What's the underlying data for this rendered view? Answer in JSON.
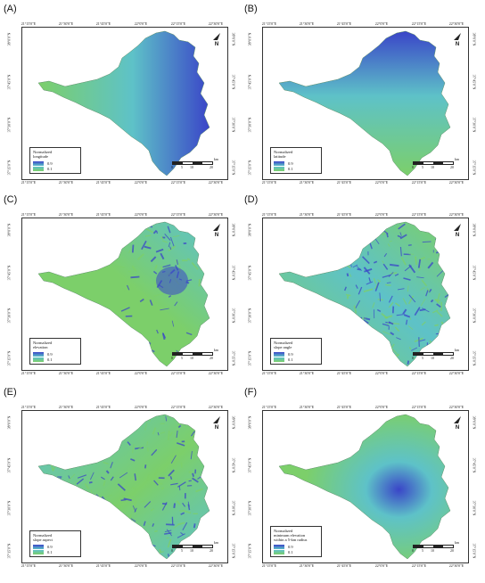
{
  "lon_labels": [
    "21°15'0\"E",
    "21°30'0\"E",
    "21°45'0\"E",
    "22°0'0\"E",
    "22°15'0\"E",
    "22°30'0\"E"
  ],
  "lat_labels": [
    "38°0'0\"N",
    "37°45'0\"N",
    "37°30'0\"N",
    "37°15'0\"N"
  ],
  "legend_max": "0.9",
  "legend_min": "0.1",
  "north_label": "N",
  "scale": {
    "ticks": [
      "0",
      "5",
      "10",
      "20"
    ],
    "unit": "km"
  },
  "colors": {
    "high": "#3a45c8",
    "mid": "#5ec2c8",
    "low": "#7ccf6a"
  },
  "panels": [
    {
      "letter": "(A)",
      "legend_title": "Normalized\nlongitude",
      "pattern": "longitude"
    },
    {
      "letter": "(B)",
      "legend_title": "Normalized\nlatitude",
      "pattern": "latitude"
    },
    {
      "letter": "(C)",
      "legend_title": "Normalized\nelevation",
      "pattern": "elevation"
    },
    {
      "letter": "(D)",
      "legend_title": "Normalized\nslope angle",
      "pattern": "slope"
    },
    {
      "letter": "(E)",
      "legend_title": "Normalized\nslope aspect",
      "pattern": "aspect"
    },
    {
      "letter": "(F)",
      "legend_title": "Normalized\nminimum elevation\nwithin a 5-km radius",
      "pattern": "minelev"
    }
  ]
}
